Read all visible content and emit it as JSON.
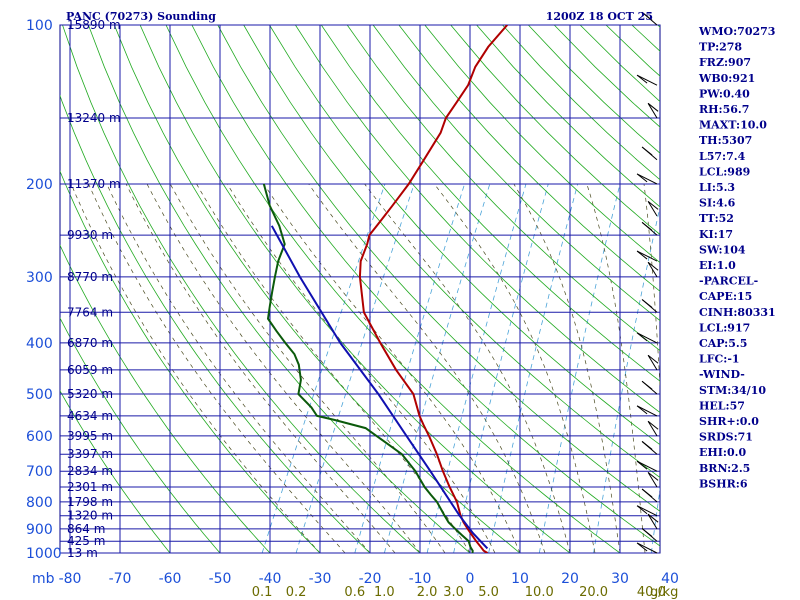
{
  "title_left": "PANC (70273) Sounding",
  "title_right": "1200Z 18 OCT 25",
  "units_mb": "mb",
  "units_gkg": "g/kg",
  "pressure_levels": [
    100,
    200,
    300,
    400,
    500,
    600,
    700,
    800,
    900,
    1000
  ],
  "height_labels": [
    {
      "p": 100,
      "text": "15890 m"
    },
    {
      "p": 150,
      "text": "13240 m"
    },
    {
      "p": 200,
      "text": "11370 m"
    },
    {
      "p": 250,
      "text": "9930 m"
    },
    {
      "p": 300,
      "text": "8770 m"
    },
    {
      "p": 350,
      "text": "7764 m"
    },
    {
      "p": 400,
      "text": "6870 m"
    },
    {
      "p": 450,
      "text": "6059 m"
    },
    {
      "p": 500,
      "text": "5320 m"
    },
    {
      "p": 550,
      "text": "4634 m"
    },
    {
      "p": 600,
      "text": "3995 m"
    },
    {
      "p": 650,
      "text": "3397 m"
    },
    {
      "p": 700,
      "text": "2834 m"
    },
    {
      "p": 750,
      "text": "2301 m"
    },
    {
      "p": 800,
      "text": "1798 m"
    },
    {
      "p": 850,
      "text": "1320 m"
    },
    {
      "p": 900,
      "text": "864 m"
    },
    {
      "p": 950,
      "text": "425 m"
    },
    {
      "p": 1000,
      "text": "13 m"
    }
  ],
  "temp_ticks": [
    -80,
    -70,
    -60,
    -50,
    -40,
    -30,
    -20,
    -10,
    0,
    10,
    20,
    30,
    40
  ],
  "mixing_ratio_labels": [
    "0.1",
    "0.2",
    "0.6",
    "1.0",
    "2.0",
    "3.0",
    "5.0",
    "10.0",
    "20.0",
    "40.0"
  ],
  "mixing_ratio_values": [
    0.1,
    0.2,
    0.6,
    1.0,
    2.0,
    3.0,
    5.0,
    10.0,
    20.0,
    40.0
  ],
  "stats": [
    "WMO:70273",
    "TP:278",
    "FRZ:907",
    "WB0:921",
    "PW:0.40",
    "RH:56.7",
    "MAXT:10.0",
    "TH:5307",
    "L57:7.4",
    "LCL:989",
    "LI:5.3",
    "SI:4.6",
    "TT:52",
    "KI:17",
    "SW:104",
    "EI:1.0",
    "-PARCEL-",
    "CAPE:15",
    "CINH:80331",
    "LCL:917",
    "CAP:5.5",
    "LFC:-1",
    "-WIND-",
    "STM:34/10",
    "HEL:57",
    "SHR+:0.0",
    "SRDS:71",
    "EHI:0.0",
    "BRN:2.5",
    "BSHR:6"
  ],
  "chart_data": {
    "type": "line",
    "title": "PANC (70273) Sounding",
    "xlabel": "",
    "ylabel": "mb",
    "x_unit": "°C",
    "y_scale": "log-pressure",
    "xlim": [
      -80,
      40
    ],
    "ylim": [
      1000,
      100
    ],
    "grid": true,
    "series": [
      {
        "role": "temperature",
        "color": "#b00000",
        "points": [
          [
            1000,
            3.5
          ],
          [
            990,
            2.5
          ],
          [
            975,
            1.6
          ],
          [
            950,
            0.0
          ],
          [
            925,
            -1.5
          ],
          [
            900,
            -3.0
          ],
          [
            875,
            -4.5
          ],
          [
            850,
            -5.8
          ],
          [
            800,
            -8.0
          ],
          [
            750,
            -11.0
          ],
          [
            700,
            -14.0
          ],
          [
            650,
            -17.0
          ],
          [
            600,
            -20.5
          ],
          [
            575,
            -22.5
          ],
          [
            550,
            -24.5
          ],
          [
            500,
            -28.0
          ],
          [
            450,
            -34.0
          ],
          [
            400,
            -40.0
          ],
          [
            350,
            -46.5
          ],
          [
            300,
            -51.0
          ],
          [
            280,
            -52.5
          ],
          [
            260,
            -53.0
          ],
          [
            250,
            -53.5
          ],
          [
            240,
            -53.0
          ],
          [
            230,
            -52.5
          ],
          [
            220,
            -52.0
          ],
          [
            200,
            -51.0
          ],
          [
            180,
            -50.5
          ],
          [
            160,
            -50.0
          ],
          [
            150,
            -50.5
          ],
          [
            140,
            -50.0
          ],
          [
            130,
            -49.5
          ],
          [
            120,
            -50.0
          ],
          [
            110,
            -49.5
          ],
          [
            100,
            -48.0
          ]
        ]
      },
      {
        "role": "dewpoint",
        "color": "#0b5a0b",
        "points": [
          [
            1000,
            0.5
          ],
          [
            990,
            0.3
          ],
          [
            975,
            -0.5
          ],
          [
            950,
            -1.5
          ],
          [
            925,
            -3.5
          ],
          [
            900,
            -5.5
          ],
          [
            875,
            -7.5
          ],
          [
            850,
            -9.0
          ],
          [
            800,
            -12.0
          ],
          [
            775,
            -14.0
          ],
          [
            750,
            -16.0
          ],
          [
            700,
            -19.5
          ],
          [
            650,
            -24.0
          ],
          [
            600,
            -31.0
          ],
          [
            580,
            -34.0
          ],
          [
            560,
            -41.0
          ],
          [
            550,
            -45.0
          ],
          [
            530,
            -47.0
          ],
          [
            500,
            -51.0
          ],
          [
            470,
            -52.0
          ],
          [
            440,
            -54.0
          ],
          [
            420,
            -56.0
          ],
          [
            400,
            -59.0
          ],
          [
            380,
            -62.0
          ],
          [
            360,
            -65.0
          ],
          [
            340,
            -66.0
          ],
          [
            320,
            -67.0
          ],
          [
            300,
            -68.0
          ],
          [
            280,
            -69.0
          ],
          [
            260,
            -69.5
          ],
          [
            240,
            -72.5
          ],
          [
            220,
            -76.5
          ],
          [
            200,
            -80.0
          ]
        ]
      },
      {
        "role": "parcel",
        "color": "#1010b0",
        "points": [
          [
            980,
            3.0
          ],
          [
            917,
            -1.5
          ],
          [
            850,
            -6.0
          ],
          [
            700,
            -16.5
          ],
          [
            600,
            -25.0
          ],
          [
            500,
            -35.0
          ],
          [
            400,
            -48.0
          ],
          [
            300,
            -63.0
          ],
          [
            250,
            -72.0
          ],
          [
            240,
            -74.0
          ]
        ]
      }
    ]
  }
}
